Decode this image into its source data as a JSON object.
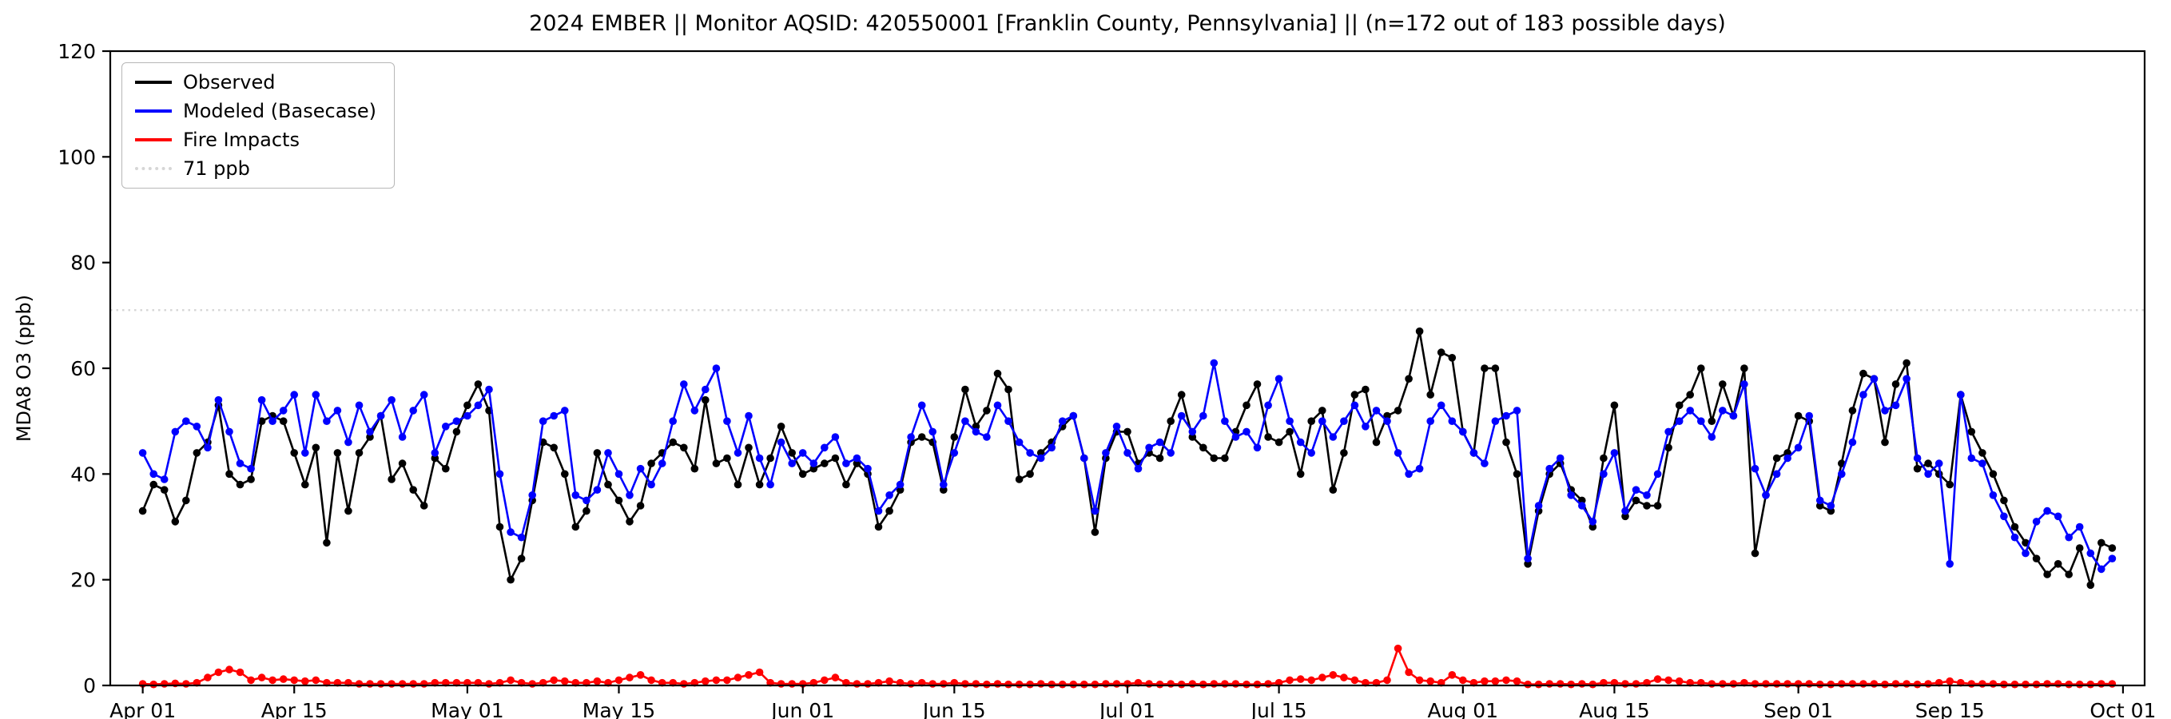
{
  "chart_data": {
    "type": "line",
    "title": "2024 EMBER || Monitor AQSID: 420550001 [Franklin County, Pennsylvania] || (n=172 out of 183 possible days)",
    "xlabel": "",
    "ylabel": "MDA8 O3 (ppb)",
    "ylim": [
      0,
      120
    ],
    "xlim": [
      -3,
      185
    ],
    "y_ticks": [
      0,
      20,
      40,
      60,
      80,
      100,
      120
    ],
    "x_ticks": [
      {
        "label": "Apr 01",
        "day": 0
      },
      {
        "label": "Apr 15",
        "day": 14
      },
      {
        "label": "May 01",
        "day": 30
      },
      {
        "label": "May 15",
        "day": 44
      },
      {
        "label": "Jun 01",
        "day": 61
      },
      {
        "label": "Jun 15",
        "day": 75
      },
      {
        "label": "Jul 01",
        "day": 91
      },
      {
        "label": "Jul 15",
        "day": 105
      },
      {
        "label": "Aug 01",
        "day": 122
      },
      {
        "label": "Aug 15",
        "day": 136
      },
      {
        "label": "Sep 01",
        "day": 153
      },
      {
        "label": "Sep 15",
        "day": 167
      },
      {
        "label": "Oct 01",
        "day": 183
      }
    ],
    "threshold": {
      "value": 71,
      "label": "71 ppb",
      "color": "#d6d6d6",
      "style": "dotted"
    },
    "grid": false,
    "legend_position": "upper-left",
    "series": [
      {
        "name": "Observed",
        "color": "#000000",
        "values": [
          33,
          38,
          37,
          31,
          35,
          44,
          46,
          53,
          40,
          38,
          39,
          50,
          51,
          50,
          44,
          38,
          45,
          27,
          44,
          33,
          44,
          47,
          51,
          39,
          42,
          37,
          34,
          43,
          41,
          48,
          53,
          57,
          52,
          30,
          20,
          24,
          35,
          46,
          45,
          40,
          30,
          33,
          44,
          38,
          35,
          31,
          34,
          42,
          44,
          46,
          45,
          41,
          54,
          42,
          43,
          38,
          45,
          38,
          43,
          49,
          44,
          40,
          41,
          42,
          43,
          38,
          42,
          40,
          30,
          33,
          37,
          46,
          47,
          46,
          37,
          47,
          56,
          49,
          52,
          59,
          56,
          39,
          40,
          44,
          46,
          49,
          51,
          43,
          29,
          43,
          48,
          48,
          42,
          44,
          43,
          50,
          55,
          47,
          45,
          43,
          43,
          48,
          53,
          57,
          47,
          46,
          48,
          40,
          50,
          52,
          37,
          44,
          55,
          56,
          46,
          51,
          52,
          58,
          67,
          55,
          63,
          62,
          48,
          44,
          60,
          60,
          46,
          40,
          23,
          33,
          40,
          42,
          37,
          35,
          30,
          43,
          53,
          32,
          35,
          34,
          34,
          45,
          53,
          55,
          60,
          50,
          57,
          51,
          60,
          25,
          36,
          43,
          44,
          51,
          50,
          34,
          33,
          42,
          52,
          59,
          58,
          46,
          57,
          61,
          41,
          42,
          40,
          38,
          55,
          48,
          44,
          40,
          35,
          30,
          27,
          24,
          21,
          23,
          21,
          26,
          19,
          27,
          26
        ]
      },
      {
        "name": "Modeled (Basecase)",
        "color": "#0000ff",
        "values": [
          44,
          40,
          39,
          48,
          50,
          49,
          45,
          54,
          48,
          42,
          41,
          54,
          50,
          52,
          55,
          44,
          55,
          50,
          52,
          46,
          53,
          48,
          51,
          54,
          47,
          52,
          55,
          44,
          49,
          50,
          51,
          53,
          56,
          40,
          29,
          28,
          36,
          50,
          51,
          52,
          36,
          35,
          37,
          44,
          40,
          36,
          41,
          38,
          42,
          50,
          57,
          52,
          56,
          60,
          50,
          44,
          51,
          43,
          38,
          46,
          42,
          44,
          42,
          45,
          47,
          42,
          43,
          41,
          33,
          36,
          38,
          47,
          53,
          48,
          38,
          44,
          50,
          48,
          47,
          53,
          50,
          46,
          44,
          43,
          45,
          50,
          51,
          43,
          33,
          44,
          49,
          44,
          41,
          45,
          46,
          44,
          51,
          48,
          51,
          61,
          50,
          47,
          48,
          45,
          53,
          58,
          50,
          46,
          44,
          50,
          47,
          50,
          53,
          49,
          52,
          50,
          44,
          40,
          41,
          50,
          53,
          50,
          48,
          44,
          42,
          50,
          51,
          52,
          24,
          34,
          41,
          43,
          36,
          34,
          31,
          40,
          44,
          33,
          37,
          36,
          40,
          48,
          50,
          52,
          50,
          47,
          52,
          51,
          57,
          41,
          36,
          40,
          43,
          45,
          51,
          35,
          34,
          40,
          46,
          55,
          58,
          52,
          53,
          58,
          43,
          40,
          42,
          23,
          55,
          43,
          42,
          36,
          32,
          28,
          25,
          31,
          33,
          32,
          28,
          30,
          25,
          22,
          24
        ]
      },
      {
        "name": "Fire Impacts",
        "color": "#ff0000",
        "values": [
          0.3,
          0.2,
          0.3,
          0.4,
          0.3,
          0.5,
          1.5,
          2.5,
          3,
          2.5,
          1,
          1.5,
          1,
          1.2,
          1,
          0.8,
          1,
          0.5,
          0.5,
          0.5,
          0.3,
          0.3,
          0.3,
          0.3,
          0.3,
          0.3,
          0.3,
          0.5,
          0.5,
          0.5,
          0.5,
          0.5,
          0.3,
          0.5,
          1,
          0.5,
          0.3,
          0.5,
          1,
          0.8,
          0.5,
          0.5,
          0.8,
          0.5,
          1,
          1.5,
          2,
          1,
          0.5,
          0.5,
          0.3,
          0.5,
          0.8,
          1,
          1,
          1.5,
          2,
          2.5,
          0.5,
          0.3,
          0.3,
          0.3,
          0.5,
          1,
          1.5,
          0.5,
          0.3,
          0.3,
          0.5,
          0.8,
          0.5,
          0.3,
          0.5,
          0.3,
          0.3,
          0.5,
          0.3,
          0.3,
          0.2,
          0.3,
          0.2,
          0.2,
          0.2,
          0.3,
          0.2,
          0.2,
          0.2,
          0.2,
          0.2,
          0.3,
          0.3,
          0.3,
          0.5,
          0.3,
          0.2,
          0.3,
          0.2,
          0.3,
          0.2,
          0.3,
          0.3,
          0.3,
          0.2,
          0.2,
          0.3,
          0.5,
          1,
          1.2,
          1,
          1.5,
          2,
          1.5,
          1,
          0.5,
          0.5,
          1,
          7,
          2.5,
          1,
          0.8,
          0.5,
          2,
          1,
          0.5,
          0.8,
          0.8,
          1,
          0.8,
          0.2,
          0.2,
          0.3,
          0.3,
          0.2,
          0.3,
          0.2,
          0.5,
          0.5,
          0.3,
          0.3,
          0.5,
          1.2,
          1,
          0.8,
          0.5,
          0.5,
          0.3,
          0.3,
          0.3,
          0.5,
          0.3,
          0.3,
          0.3,
          0.3,
          0.3,
          0.3,
          0.2,
          0.2,
          0.3,
          0.3,
          0.3,
          0.3,
          0.2,
          0.3,
          0.3,
          0.2,
          0.3,
          0.5,
          0.8,
          0.5,
          0.3,
          0.3,
          0.3,
          0.2,
          0.2,
          0.2,
          0.2,
          0.3,
          0.3,
          0.2,
          0.2,
          0.2,
          0.3,
          0.3
        ]
      }
    ]
  }
}
